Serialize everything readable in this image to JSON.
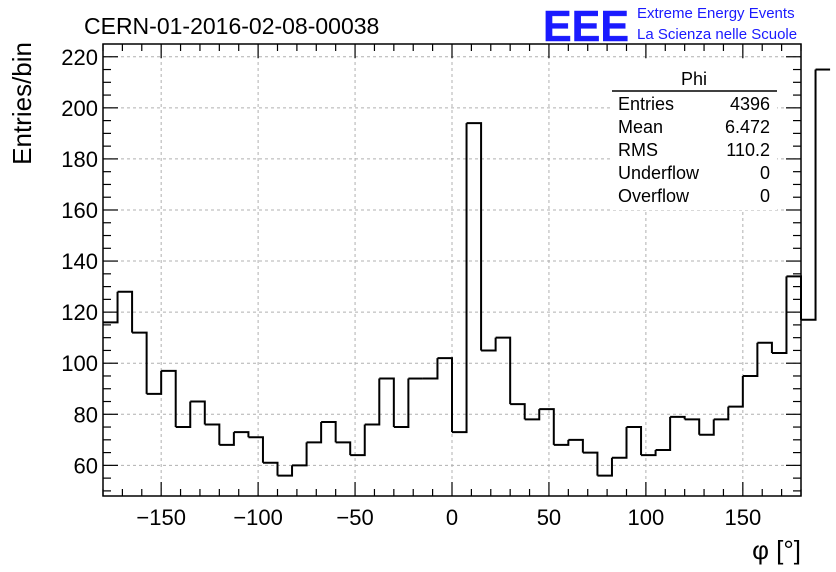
{
  "header": {
    "title": "CERN-01-2016-02-08-00038",
    "logo_text": "EEE",
    "logo_line1": "Extreme Energy Events",
    "logo_line2": "La Scienza nelle Scuole",
    "logo_color": "#1a1aff"
  },
  "stats_box": {
    "name": "Phi",
    "rows": [
      {
        "label": "Entries",
        "value": "4396"
      },
      {
        "label": "Mean",
        "value": "6.472"
      },
      {
        "label": "RMS",
        "value": "110.2"
      },
      {
        "label": "Underflow",
        "value": "0"
      },
      {
        "label": "Overflow",
        "value": "0"
      }
    ]
  },
  "chart_data": {
    "type": "histogram",
    "title": "CERN-01-2016-02-08-00038",
    "xlabel": "φ [°]",
    "ylabel": "Entries/bin",
    "xlim": [
      -180,
      180
    ],
    "ylim": [
      48,
      225
    ],
    "grid": true,
    "x_ticks": [
      -150,
      -100,
      -50,
      0,
      50,
      100,
      150
    ],
    "x_tick_labels": [
      "−150",
      "−100",
      "−50",
      "0",
      "50",
      "100",
      "150"
    ],
    "y_ticks": [
      60,
      80,
      100,
      120,
      140,
      160,
      180,
      200,
      220
    ],
    "y_tick_labels": [
      "60",
      "80",
      "100",
      "120",
      "140",
      "160",
      "180",
      "200",
      "220"
    ],
    "bin_edges_start": -180,
    "bin_width": 7.5,
    "values": [
      116,
      128,
      112,
      88,
      97,
      75,
      85,
      76,
      68,
      73,
      71,
      61,
      56,
      60,
      69,
      77,
      69,
      64,
      76,
      94,
      75,
      94,
      94,
      102,
      73,
      194,
      105,
      110,
      84,
      78,
      82,
      68,
      70,
      65,
      56,
      63,
      75,
      64,
      66,
      79,
      78,
      72,
      78,
      83,
      95,
      108,
      104,
      134,
      117,
      215
    ]
  }
}
